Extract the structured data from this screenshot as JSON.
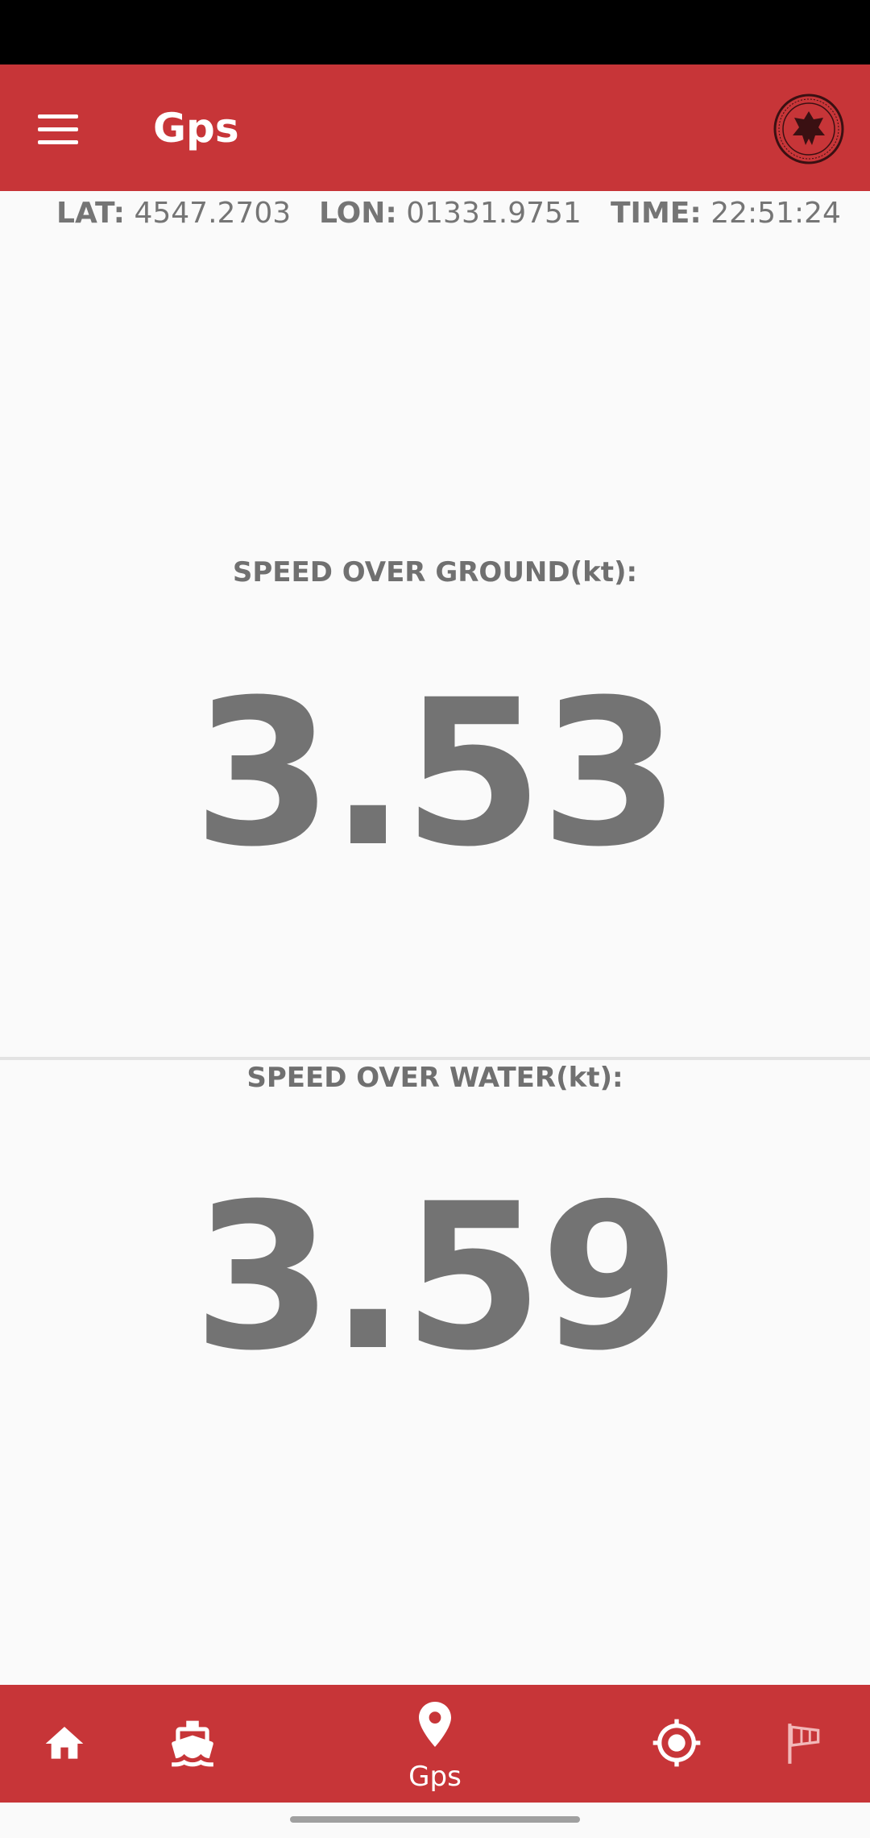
{
  "app_bar": {
    "title": "Gps"
  },
  "info": {
    "lat_label": "LAT:",
    "lat_value": "4547.2703",
    "lon_label": "LON:",
    "lon_value": "01331.9751",
    "time_label": "TIME:",
    "time_value": "22:51:24"
  },
  "sog": {
    "label": "SPEED OVER GROUND(kt):",
    "value": "3.53"
  },
  "sow": {
    "label": "SPEED OVER WATER(kt):",
    "value": "3.59"
  },
  "bottom_nav": {
    "items": [
      {
        "icon": "home-icon"
      },
      {
        "icon": "boat-icon"
      },
      {
        "icon": "location-pin-icon",
        "label": "Gps"
      },
      {
        "icon": "gps-target-icon"
      },
      {
        "icon": "windsock-icon"
      }
    ]
  },
  "colors": {
    "primary": "#c73538",
    "text": "#737373",
    "background": "#fafafa"
  }
}
